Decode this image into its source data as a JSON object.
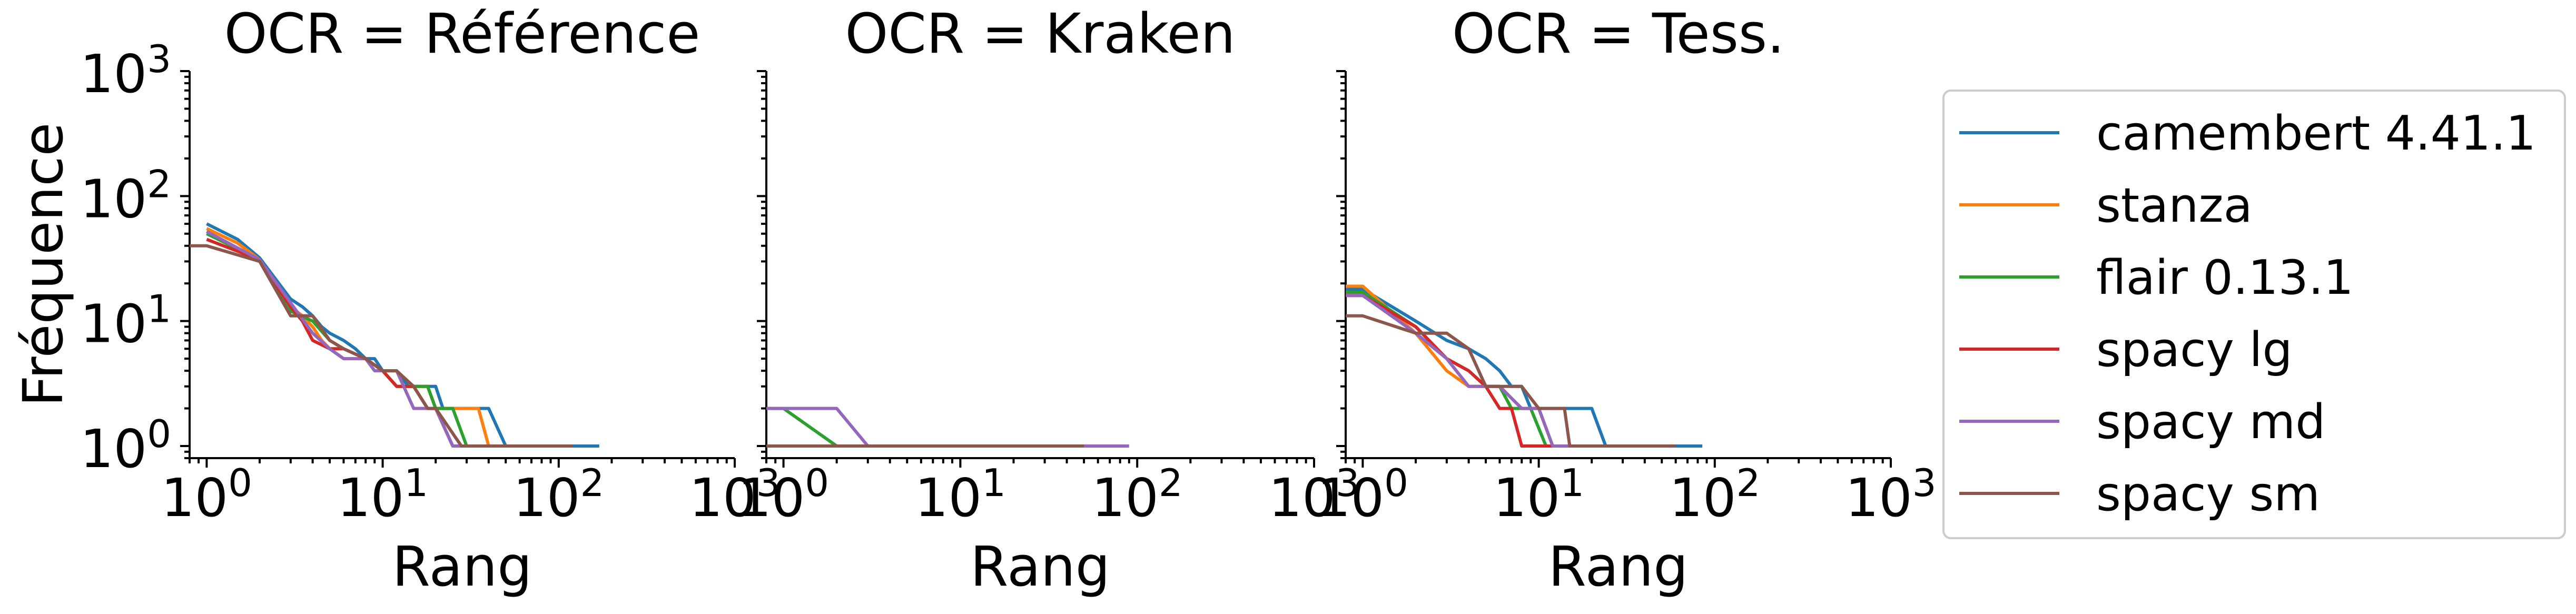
{
  "chart_data": [
    {
      "type": "line",
      "title": "OCR = Référence",
      "xlabel": "Rang",
      "ylabel": "Fréquence",
      "xscale": "log",
      "yscale": "log",
      "xlim": [
        0.8,
        1000
      ],
      "ylim": [
        0.8,
        1000
      ],
      "xticks": [
        "10^0",
        "10^1",
        "10^2",
        "10^3"
      ],
      "yticks": [
        "10^0",
        "10^1",
        "10^2",
        "10^3"
      ],
      "series": [
        {
          "name": "camembert 4.41.1",
          "color": "#1f77b4",
          "points": [
            [
              1,
              60
            ],
            [
              1.5,
              45
            ],
            [
              2,
              32
            ],
            [
              3,
              15
            ],
            [
              3.5,
              13
            ],
            [
              4,
              11
            ],
            [
              4.5,
              9
            ],
            [
              5,
              8
            ],
            [
              6,
              7
            ],
            [
              7,
              6
            ],
            [
              8,
              5
            ],
            [
              9,
              5
            ],
            [
              10,
              4
            ],
            [
              12,
              4
            ],
            [
              14,
              3
            ],
            [
              16,
              3
            ],
            [
              18,
              3
            ],
            [
              20,
              3
            ],
            [
              22,
              2
            ],
            [
              25,
              2
            ],
            [
              30,
              2
            ],
            [
              40,
              2
            ],
            [
              50,
              1
            ],
            [
              100,
              1
            ],
            [
              170,
              1
            ]
          ]
        },
        {
          "name": "stanza",
          "color": "#ff7f0e",
          "points": [
            [
              1,
              55
            ],
            [
              1.5,
              42
            ],
            [
              2,
              31
            ],
            [
              3,
              13
            ],
            [
              3.5,
              11
            ],
            [
              4,
              9
            ],
            [
              4.5,
              7
            ],
            [
              5,
              6
            ],
            [
              6,
              5
            ],
            [
              7,
              5
            ],
            [
              8,
              5
            ],
            [
              10,
              4
            ],
            [
              12,
              3
            ],
            [
              15,
              3
            ],
            [
              18,
              3
            ],
            [
              20,
              2
            ],
            [
              25,
              2
            ],
            [
              30,
              2
            ],
            [
              35,
              2
            ],
            [
              40,
              1
            ],
            [
              90,
              1
            ]
          ]
        },
        {
          "name": "flair 0.13.1",
          "color": "#2ca02c",
          "points": [
            [
              1,
              50
            ],
            [
              2,
              31
            ],
            [
              3,
              12
            ],
            [
              4,
              10
            ],
            [
              5,
              7
            ],
            [
              6,
              6
            ],
            [
              8,
              5
            ],
            [
              10,
              4
            ],
            [
              12,
              3
            ],
            [
              15,
              3
            ],
            [
              18,
              3
            ],
            [
              20,
              2
            ],
            [
              25,
              2
            ],
            [
              30,
              1
            ],
            [
              80,
              1
            ]
          ]
        },
        {
          "name": "spacy lg",
          "color": "#d62728",
          "points": [
            [
              1,
              45
            ],
            [
              2,
              31
            ],
            [
              3,
              13
            ],
            [
              3.5,
              10
            ],
            [
              4,
              7
            ],
            [
              5,
              6
            ],
            [
              6,
              6
            ],
            [
              8,
              5
            ],
            [
              10,
              4
            ],
            [
              12,
              3
            ],
            [
              15,
              3
            ],
            [
              18,
              2
            ],
            [
              20,
              2
            ],
            [
              25,
              1
            ],
            [
              60,
              1
            ]
          ]
        },
        {
          "name": "spacy md",
          "color": "#9467bd",
          "points": [
            [
              1,
              52
            ],
            [
              2,
              31
            ],
            [
              3,
              14
            ],
            [
              4,
              8
            ],
            [
              5,
              6
            ],
            [
              6,
              5
            ],
            [
              8,
              5
            ],
            [
              9,
              4
            ],
            [
              12,
              4
            ],
            [
              15,
              2
            ],
            [
              20,
              2
            ],
            [
              25,
              1
            ],
            [
              70,
              1
            ]
          ]
        },
        {
          "name": "spacy sm",
          "color": "#8c564b",
          "points": [
            [
              0.8,
              40
            ],
            [
              1,
              40
            ],
            [
              2,
              30
            ],
            [
              3,
              11
            ],
            [
              4,
              11
            ],
            [
              5,
              7
            ],
            [
              6,
              6
            ],
            [
              8,
              5
            ],
            [
              10,
              4
            ],
            [
              12,
              4
            ],
            [
              15,
              3
            ],
            [
              18,
              2
            ],
            [
              20,
              2
            ],
            [
              28,
              1
            ],
            [
              120,
              1
            ]
          ]
        }
      ]
    },
    {
      "type": "line",
      "title": "OCR = Kraken",
      "xlabel": "Rang",
      "ylabel": "",
      "xscale": "log",
      "yscale": "log",
      "xlim": [
        0.8,
        1000
      ],
      "ylim": [
        0.8,
        1000
      ],
      "xticks": [
        "10^0",
        "10^1",
        "10^2",
        "10^3"
      ],
      "series": [
        {
          "name": "camembert 4.41.1",
          "color": "#1f77b4",
          "points": [
            [
              1,
              1
            ],
            [
              50,
              1
            ]
          ]
        },
        {
          "name": "stanza",
          "color": "#ff7f0e",
          "points": [
            [
              1,
              1
            ],
            [
              40,
              1
            ]
          ]
        },
        {
          "name": "flair 0.13.1",
          "color": "#2ca02c",
          "points": [
            [
              0.8,
              2
            ],
            [
              1,
              2
            ],
            [
              2,
              1
            ],
            [
              60,
              1
            ]
          ]
        },
        {
          "name": "spacy lg",
          "color": "#d62728",
          "points": [
            [
              1,
              1
            ],
            [
              30,
              1
            ]
          ]
        },
        {
          "name": "spacy md",
          "color": "#9467bd",
          "points": [
            [
              0.8,
              2
            ],
            [
              2,
              2
            ],
            [
              3,
              1
            ],
            [
              90,
              1
            ]
          ]
        },
        {
          "name": "spacy sm",
          "color": "#8c564b",
          "points": [
            [
              0.8,
              1
            ],
            [
              50,
              1
            ]
          ]
        }
      ]
    },
    {
      "type": "line",
      "title": "OCR = Tess.",
      "xlabel": "Rang",
      "ylabel": "",
      "xscale": "log",
      "yscale": "log",
      "xlim": [
        0.8,
        1000
      ],
      "ylim": [
        0.8,
        1000
      ],
      "xticks": [
        "10^0",
        "10^1",
        "10^2",
        "10^3"
      ],
      "series": [
        {
          "name": "camembert 4.41.1",
          "color": "#1f77b4",
          "points": [
            [
              0.8,
              18
            ],
            [
              1,
              18
            ],
            [
              2,
              10
            ],
            [
              3,
              7
            ],
            [
              4,
              6
            ],
            [
              5,
              5
            ],
            [
              6,
              4
            ],
            [
              7,
              3
            ],
            [
              8,
              3
            ],
            [
              9,
              2
            ],
            [
              12,
              2
            ],
            [
              15,
              2
            ],
            [
              20,
              2
            ],
            [
              24,
              1
            ],
            [
              85,
              1
            ]
          ]
        },
        {
          "name": "stanza",
          "color": "#ff7f0e",
          "points": [
            [
              0.8,
              19
            ],
            [
              1,
              19
            ],
            [
              2,
              8
            ],
            [
              3,
              4
            ],
            [
              4,
              3
            ],
            [
              5,
              3
            ],
            [
              6,
              3
            ],
            [
              8,
              2
            ],
            [
              10,
              2
            ],
            [
              12,
              1
            ],
            [
              40,
              1
            ]
          ]
        },
        {
          "name": "flair 0.13.1",
          "color": "#2ca02c",
          "points": [
            [
              0.8,
              17
            ],
            [
              1,
              17
            ],
            [
              2,
              9
            ],
            [
              3,
              5
            ],
            [
              4,
              4
            ],
            [
              5,
              3
            ],
            [
              6,
              3
            ],
            [
              7,
              2
            ],
            [
              9,
              2
            ],
            [
              11,
              1
            ],
            [
              30,
              1
            ]
          ]
        },
        {
          "name": "spacy lg",
          "color": "#d62728",
          "points": [
            [
              0.8,
              16
            ],
            [
              1,
              16
            ],
            [
              2,
              9
            ],
            [
              3,
              5
            ],
            [
              4,
              4
            ],
            [
              5,
              3
            ],
            [
              6,
              2
            ],
            [
              7,
              2
            ],
            [
              8,
              1
            ],
            [
              20,
              1
            ]
          ]
        },
        {
          "name": "spacy md",
          "color": "#9467bd",
          "points": [
            [
              0.8,
              16
            ],
            [
              1,
              16
            ],
            [
              2,
              8
            ],
            [
              3,
              5
            ],
            [
              4,
              3
            ],
            [
              5,
              3
            ],
            [
              6,
              3
            ],
            [
              8,
              2
            ],
            [
              10,
              2
            ],
            [
              12,
              1
            ],
            [
              35,
              1
            ]
          ]
        },
        {
          "name": "spacy sm",
          "color": "#8c564b",
          "points": [
            [
              0.8,
              11
            ],
            [
              1,
              11
            ],
            [
              2,
              8
            ],
            [
              3,
              8
            ],
            [
              4,
              6
            ],
            [
              5,
              3
            ],
            [
              8,
              3
            ],
            [
              10,
              2
            ],
            [
              14,
              2
            ],
            [
              15,
              1
            ],
            [
              60,
              1
            ]
          ]
        }
      ]
    }
  ],
  "legend": {
    "placement": "right",
    "items": [
      {
        "label": "camembert 4.41.1",
        "color": "#1f77b4"
      },
      {
        "label": "stanza",
        "color": "#ff7f0e"
      },
      {
        "label": "flair 0.13.1",
        "color": "#2ca02c"
      },
      {
        "label": "spacy lg",
        "color": "#d62728"
      },
      {
        "label": "spacy md",
        "color": "#9467bd"
      },
      {
        "label": "spacy sm",
        "color": "#8c564b"
      }
    ]
  }
}
